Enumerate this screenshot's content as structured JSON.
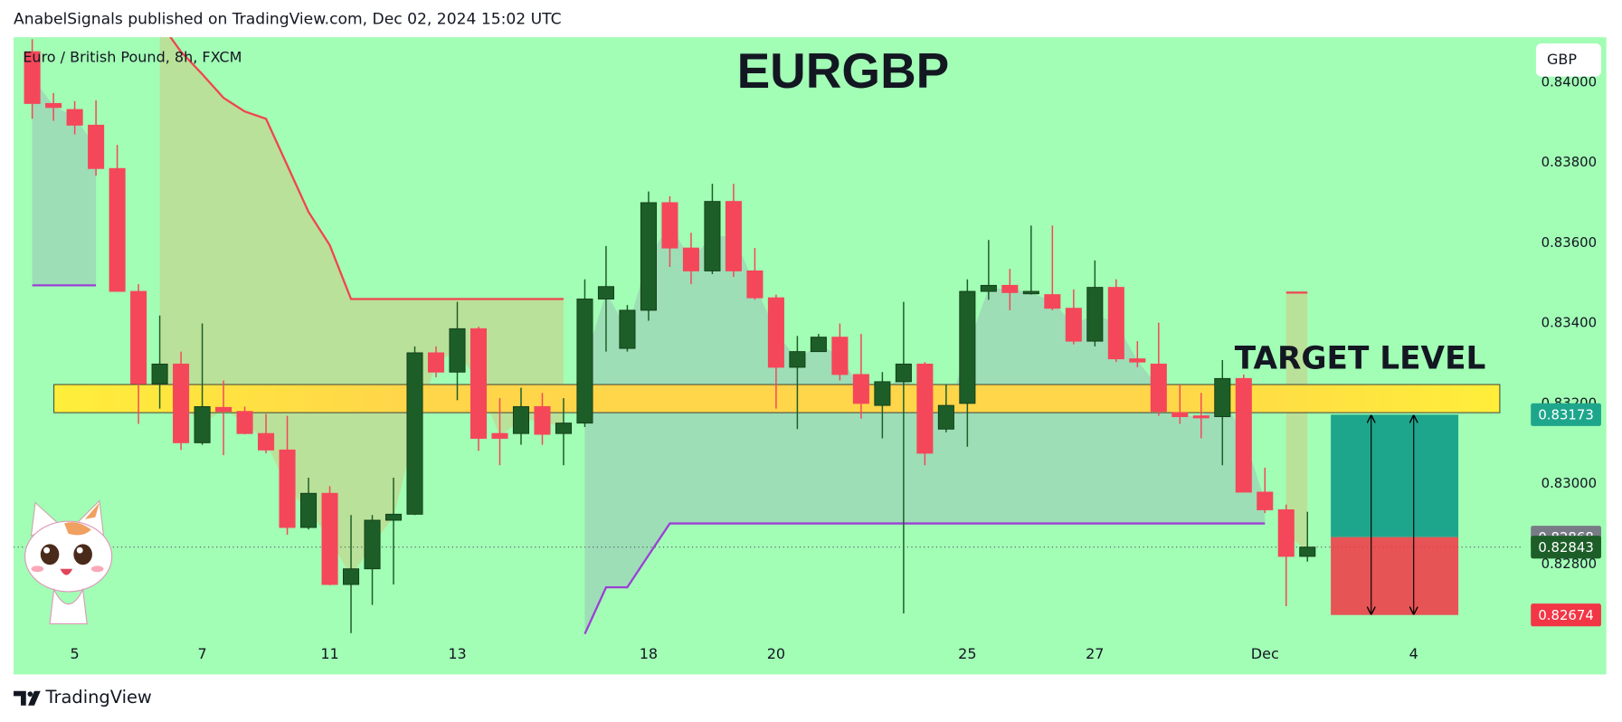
{
  "header": {
    "text": "AnabelSignals published on TradingView.com, Dec 02, 2024 15:02 UTC"
  },
  "footer": {
    "brand": "TradingView"
  },
  "chart_data": {
    "type": "candlestick",
    "title": "EURGBP",
    "symbol": "Euro / British Pound, 8h, FXCM",
    "currency": "GBP",
    "background": "#a2fdb5",
    "up_color": "#1d5e28",
    "down_color": "#f5475a",
    "categories": [
      null,
      null,
      "5",
      null,
      null,
      null,
      null,
      null,
      "7",
      null,
      null,
      null,
      null,
      null,
      "11",
      null,
      null,
      null,
      null,
      null,
      "13",
      null,
      null,
      null,
      null,
      null,
      null,
      null,
      null,
      "18",
      null,
      null,
      null,
      null,
      null,
      "20",
      null,
      null,
      null,
      null,
      null,
      null,
      null,
      null,
      "25",
      null,
      null,
      null,
      null,
      null,
      "27",
      null,
      null,
      null,
      null,
      null,
      null,
      null,
      "Dec",
      null,
      null,
      null,
      null,
      null,
      null,
      "4",
      null,
      null,
      null
    ],
    "open": [
      0.84077,
      0.83948,
      0.83933,
      0.83894,
      0.83786,
      0.8348,
      0.8325,
      0.83299,
      0.83103,
      0.83191,
      0.83181,
      0.83126,
      0.83085,
      0.82892,
      0.82977,
      0.8275,
      0.82789,
      0.8291,
      0.82925,
      0.83327,
      0.83279,
      0.83387,
      0.83126,
      0.83126,
      0.83193,
      0.83126,
      0.83152,
      0.83461,
      0.83338,
      0.83433,
      0.83701,
      0.83588,
      0.83531,
      0.83704,
      0.83531,
      0.83464,
      0.83291,
      0.8333,
      0.83366,
      0.83273,
      0.83196,
      0.83255,
      0.83299,
      0.83137,
      0.83201,
      0.8348,
      0.83495,
      0.83474,
      0.83472,
      0.83438,
      0.83356,
      0.8349,
      0.83312,
      0.83299,
      0.83178,
      0.8317,
      0.83168,
      0.83263,
      0.8298,
      0.82936,
      0.8282,
      null,
      null,
      null,
      null,
      null,
      null,
      null,
      null
    ],
    "high": [
      0.84108,
      0.83974,
      0.83954,
      0.83956,
      0.83845,
      0.83498,
      0.8342,
      0.8333,
      0.834,
      0.83258,
      0.83193,
      0.83175,
      0.8317,
      0.83016,
      0.82995,
      0.82923,
      0.82923,
      0.83016,
      0.83343,
      0.83343,
      0.83454,
      0.83392,
      0.83214,
      0.8324,
      0.83227,
      0.83214,
      0.8351,
      0.83593,
      0.83446,
      0.83729,
      0.83717,
      0.83626,
      0.83748,
      0.83748,
      0.83588,
      0.83472,
      0.83369,
      0.83374,
      0.834,
      0.83374,
      0.83279,
      0.83454,
      0.83304,
      0.83248,
      0.8351,
      0.83608,
      0.83536,
      0.83644,
      0.83644,
      0.83485,
      0.83557,
      0.8351,
      0.83356,
      0.83402,
      0.83248,
      0.83227,
      0.83309,
      0.83273,
      0.83041,
      0.82949,
      0.82931,
      null,
      null,
      null,
      null,
      null,
      null,
      null,
      null
    ],
    "low": [
      0.8391,
      0.83905,
      0.83871,
      0.83768,
      0.8348,
      0.8315,
      0.83188,
      0.83085,
      0.83098,
      0.83072,
      0.83124,
      0.83077,
      0.82874,
      0.82887,
      0.82748,
      0.82629,
      0.82699,
      0.8275,
      0.82923,
      0.83266,
      0.83209,
      0.83083,
      0.83047,
      0.83098,
      0.83098,
      0.83047,
      0.83142,
      0.8333,
      0.8333,
      0.83407,
      0.83541,
      0.83498,
      0.83523,
      0.83516,
      0.83459,
      0.83188,
      0.83137,
      0.8333,
      0.83258,
      0.83163,
      0.83114,
      0.82678,
      0.83047,
      0.83129,
      0.83093,
      0.83459,
      0.83433,
      0.83472,
      0.83433,
      0.83348,
      0.83343,
      0.83304,
      0.83291,
      0.8317,
      0.8315,
      0.83114,
      0.83047,
      0.8298,
      0.82928,
      0.82696,
      0.82807,
      null,
      null,
      null,
      null,
      null,
      null,
      null,
      null
    ],
    "close": [
      0.83948,
      0.83938,
      0.83894,
      0.83786,
      0.8348,
      0.8325,
      0.83299,
      0.83103,
      0.83193,
      0.83181,
      0.83126,
      0.83085,
      0.82892,
      0.82977,
      0.8275,
      0.82789,
      0.8291,
      0.82925,
      0.83327,
      0.83279,
      0.83387,
      0.83114,
      0.83114,
      0.83193,
      0.83124,
      0.83152,
      0.83461,
      0.83492,
      0.83433,
      0.83701,
      0.83588,
      0.83531,
      0.83704,
      0.83531,
      0.83464,
      0.83291,
      0.8333,
      0.83366,
      0.83273,
      0.83201,
      0.83255,
      0.83299,
      0.83077,
      0.83196,
      0.8348,
      0.83495,
      0.83477,
      0.8348,
      0.83438,
      0.83356,
      0.8349,
      0.83312,
      0.83304,
      0.83181,
      0.83168,
      0.83165,
      0.83263,
      0.8298,
      0.82936,
      0.8282,
      0.82843,
      null,
      null,
      null,
      null,
      null,
      null,
      null,
      null
    ],
    "trend_lines": [
      {
        "color": "#f0454f",
        "fill": "rgba(214,190,120,0.45)",
        "values": [
          null,
          null,
          null,
          null,
          null,
          null,
          0.8415,
          0.84077,
          0.84021,
          0.83962,
          0.83928,
          0.8391,
          0.83794,
          0.83678,
          0.83595,
          0.83461,
          0.83461,
          0.83461,
          0.83461,
          0.83461,
          0.83461,
          0.83461,
          0.83461,
          0.83461,
          0.83461,
          0.83461,
          null,
          null,
          null,
          null,
          null,
          null,
          null,
          null,
          null,
          null,
          null,
          null,
          null,
          null,
          null,
          null,
          null,
          null,
          null,
          null,
          null,
          null,
          null,
          null,
          null,
          null,
          null,
          null,
          null,
          null,
          null,
          null,
          null,
          0.83477,
          0.83477,
          null,
          null,
          null,
          null,
          null,
          null,
          null,
          null
        ]
      },
      {
        "color": "#9c3fd6",
        "fill": "rgba(150,175,185,0.40)",
        "values": [
          0.83495,
          0.83495,
          0.83495,
          0.83495,
          null,
          null,
          null,
          null,
          null,
          null,
          null,
          null,
          null,
          null,
          null,
          null,
          null,
          null,
          null,
          null,
          null,
          null,
          null,
          null,
          null,
          null,
          0.82627,
          0.82743,
          0.82743,
          0.82823,
          0.82902,
          0.82902,
          0.82902,
          0.82902,
          0.82902,
          0.82902,
          0.82902,
          0.82902,
          0.82902,
          0.82902,
          0.82902,
          0.82902,
          0.82902,
          0.82902,
          0.82902,
          0.82902,
          0.82902,
          0.82902,
          0.82902,
          0.82902,
          0.82902,
          0.82902,
          0.82902,
          0.82902,
          0.82902,
          0.82902,
          0.82902,
          0.82902,
          0.82902,
          null,
          null,
          null,
          null,
          null,
          null,
          null,
          null,
          null,
          null
        ]
      }
    ],
    "target_zone": {
      "low": 0.83178,
      "high": 0.83248,
      "label": "TARGET LEVEL"
    },
    "position": {
      "target": {
        "value": 0.83173,
        "color": "#1ea68c"
      },
      "entry": {
        "value": 0.82868,
        "color": "#787b86"
      },
      "stop": {
        "value": 0.82674,
        "color": "#f23645"
      }
    },
    "last_price": {
      "value": 0.82843,
      "color": "#1d5e28"
    },
    "ylim": [
      0.82526,
      0.84113
    ],
    "yticks": [
      {
        "value": 0.828,
        "label": "0.82800"
      },
      {
        "value": 0.83,
        "label": "0.83000"
      },
      {
        "value": 0.832,
        "label": "0.83200"
      },
      {
        "value": 0.834,
        "label": "0.83400"
      },
      {
        "value": 0.836,
        "label": "0.83600"
      },
      {
        "value": 0.838,
        "label": "0.83800"
      },
      {
        "value": 0.84,
        "label": "0.84000"
      }
    ]
  }
}
